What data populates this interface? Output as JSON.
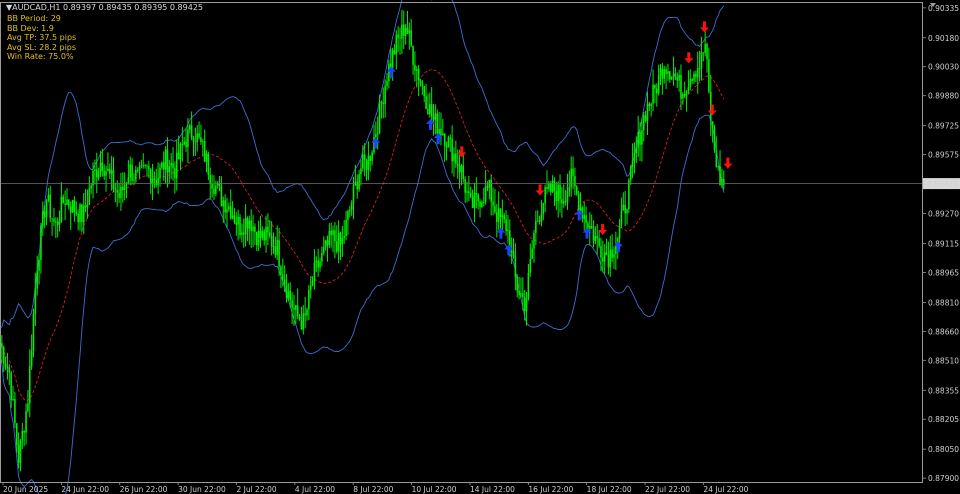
{
  "header": {
    "symbol_line": "▼AUDCAD,H1  0.89397 0.89435 0.89395 0.89425"
  },
  "info_panel": {
    "lines": [
      "BB Period: 29",
      "BB Dev: 1.9",
      "Avg TP: 37.5 pips",
      "Avg SL: 28.2 pips",
      "Win Rate: 75.0%"
    ]
  },
  "colors": {
    "background": "#000000",
    "candles": "#00ee00",
    "bands": "#3a6fd0",
    "middle_band": "#d42020",
    "sell_arrow": "#ff1010",
    "buy_arrow": "#2040ff",
    "info_text": "#e0c020",
    "axis_text": "#d0d0d0",
    "price_line": "#707070"
  },
  "chart_data": {
    "type": "candlestick",
    "symbol": "AUDCAD",
    "timeframe": "H1",
    "current_price": 0.89425,
    "current_price_label": "0.89425",
    "ylim": [
      0.8788,
      0.9036
    ],
    "y_ticks": [
      "0.90335",
      "0.90180",
      "0.90030",
      "0.89880",
      "0.89725",
      "0.89575",
      "0.89425",
      "0.89270",
      "0.89115",
      "0.88965",
      "0.88810",
      "0.88660",
      "0.88510",
      "0.88355",
      "0.88205",
      "0.88050",
      "0.87900"
    ],
    "x_ticks": [
      "20 Jun 2025",
      "24 Jun 22:00",
      "26 Jun 22:00",
      "30 Jun 22:00",
      "2 Jul 22:00",
      "4 Jul 22:00",
      "8 Jul 22:00",
      "10 Jul 22:00",
      "14 Jul 22:00",
      "16 Jul 22:00",
      "18 Jul 22:00",
      "22 Jul 22:00",
      "24 Jul 22:00"
    ],
    "price_path": [
      {
        "x": 0,
        "y": 0.886
      },
      {
        "x": 0.01,
        "y": 0.8845
      },
      {
        "x": 0.02,
        "y": 0.88
      },
      {
        "x": 0.03,
        "y": 0.883
      },
      {
        "x": 0.04,
        "y": 0.89
      },
      {
        "x": 0.05,
        "y": 0.8935
      },
      {
        "x": 0.06,
        "y": 0.892
      },
      {
        "x": 0.07,
        "y": 0.8935
      },
      {
        "x": 0.08,
        "y": 0.893
      },
      {
        "x": 0.09,
        "y": 0.8925
      },
      {
        "x": 0.1,
        "y": 0.8945
      },
      {
        "x": 0.11,
        "y": 0.8955
      },
      {
        "x": 0.12,
        "y": 0.8945
      },
      {
        "x": 0.13,
        "y": 0.8935
      },
      {
        "x": 0.14,
        "y": 0.895
      },
      {
        "x": 0.15,
        "y": 0.8945
      },
      {
        "x": 0.16,
        "y": 0.895
      },
      {
        "x": 0.17,
        "y": 0.8945
      },
      {
        "x": 0.18,
        "y": 0.8955
      },
      {
        "x": 0.19,
        "y": 0.895
      },
      {
        "x": 0.2,
        "y": 0.8965
      },
      {
        "x": 0.21,
        "y": 0.897
      },
      {
        "x": 0.22,
        "y": 0.896
      },
      {
        "x": 0.23,
        "y": 0.8945
      },
      {
        "x": 0.24,
        "y": 0.8935
      },
      {
        "x": 0.25,
        "y": 0.893
      },
      {
        "x": 0.26,
        "y": 0.892
      },
      {
        "x": 0.27,
        "y": 0.8925
      },
      {
        "x": 0.28,
        "y": 0.8915
      },
      {
        "x": 0.29,
        "y": 0.8915
      },
      {
        "x": 0.3,
        "y": 0.891
      },
      {
        "x": 0.31,
        "y": 0.889
      },
      {
        "x": 0.32,
        "y": 0.8875
      },
      {
        "x": 0.33,
        "y": 0.887
      },
      {
        "x": 0.34,
        "y": 0.8895
      },
      {
        "x": 0.35,
        "y": 0.8905
      },
      {
        "x": 0.36,
        "y": 0.8915
      },
      {
        "x": 0.37,
        "y": 0.891
      },
      {
        "x": 0.38,
        "y": 0.893
      },
      {
        "x": 0.39,
        "y": 0.895
      },
      {
        "x": 0.4,
        "y": 0.8955
      },
      {
        "x": 0.41,
        "y": 0.8975
      },
      {
        "x": 0.42,
        "y": 0.9
      },
      {
        "x": 0.43,
        "y": 0.9015
      },
      {
        "x": 0.44,
        "y": 0.9025
      },
      {
        "x": 0.45,
        "y": 0.9005
      },
      {
        "x": 0.46,
        "y": 0.899
      },
      {
        "x": 0.47,
        "y": 0.8975
      },
      {
        "x": 0.48,
        "y": 0.897
      },
      {
        "x": 0.49,
        "y": 0.896
      },
      {
        "x": 0.5,
        "y": 0.895
      },
      {
        "x": 0.51,
        "y": 0.893
      },
      {
        "x": 0.52,
        "y": 0.8935
      },
      {
        "x": 0.53,
        "y": 0.894
      },
      {
        "x": 0.54,
        "y": 0.8925
      },
      {
        "x": 0.55,
        "y": 0.892
      },
      {
        "x": 0.56,
        "y": 0.889
      },
      {
        "x": 0.57,
        "y": 0.888
      },
      {
        "x": 0.58,
        "y": 0.892
      },
      {
        "x": 0.59,
        "y": 0.8935
      },
      {
        "x": 0.6,
        "y": 0.894
      },
      {
        "x": 0.61,
        "y": 0.8935
      },
      {
        "x": 0.62,
        "y": 0.8945
      },
      {
        "x": 0.63,
        "y": 0.893
      },
      {
        "x": 0.64,
        "y": 0.892
      },
      {
        "x": 0.65,
        "y": 0.891
      },
      {
        "x": 0.66,
        "y": 0.8905
      },
      {
        "x": 0.67,
        "y": 0.8915
      },
      {
        "x": 0.68,
        "y": 0.8935
      },
      {
        "x": 0.69,
        "y": 0.896
      },
      {
        "x": 0.7,
        "y": 0.898
      },
      {
        "x": 0.71,
        "y": 0.899
      },
      {
        "x": 0.72,
        "y": 0.9005
      },
      {
        "x": 0.73,
        "y": 0.9
      },
      {
        "x": 0.74,
        "y": 0.899
      },
      {
        "x": 0.75,
        "y": 0.9
      },
      {
        "x": 0.76,
        "y": 0.9005
      },
      {
        "x": 0.765,
        "y": 0.9015
      },
      {
        "x": 0.77,
        "y": 0.898
      },
      {
        "x": 0.775,
        "y": 0.896
      },
      {
        "x": 0.78,
        "y": 0.8945
      },
      {
        "x": 0.785,
        "y": 0.89425
      }
    ],
    "sell_signals": [
      0.88,
      0.9,
      0.91,
      0.93,
      0.59,
      0.69,
      0.77
    ],
    "buy_signals": [
      0.48,
      0.5,
      0.55,
      0.56,
      0.64,
      0.65,
      0.74,
      0.75,
      0.79
    ],
    "indicator": {
      "name": "Bollinger Bands",
      "period": 29,
      "deviation": 1.9
    }
  }
}
